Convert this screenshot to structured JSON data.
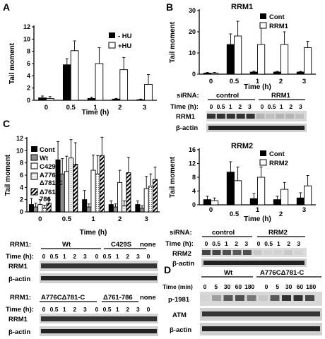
{
  "panels": {
    "A": "A",
    "B": "B",
    "C": "C",
    "D": "D"
  },
  "colors": {
    "bar_black": "#000000",
    "bar_white": "#ffffff",
    "bar_gray": "#8c8c8c"
  },
  "chart_data": [
    {
      "id": "A",
      "type": "bar",
      "title": "",
      "xlabel": "Time (h)",
      "ylabel": "Tail moment",
      "categories": [
        "0",
        "0.5",
        "1",
        "2",
        "3"
      ],
      "ylim": [
        0,
        12
      ],
      "yticks": [
        0,
        2,
        4,
        6,
        8,
        10,
        12
      ],
      "series": [
        {
          "name": "- HU",
          "values": [
            0.4,
            5.8,
            0.3,
            0.2,
            0.1
          ],
          "errors": [
            0.3,
            1.0,
            0.2,
            0.1,
            0.1
          ]
        },
        {
          "name": "+HU",
          "values": [
            0.3,
            8.1,
            6.0,
            5.0,
            2.6
          ],
          "errors": [
            0.3,
            1.6,
            2.6,
            2.0,
            1.6
          ]
        }
      ]
    },
    {
      "id": "B1",
      "type": "bar",
      "title": "RRM1",
      "xlabel": "Time (h)",
      "ylabel": "Tail moment",
      "categories": [
        "0",
        "0.5",
        "1",
        "2",
        "3"
      ],
      "ylim": [
        0,
        30
      ],
      "yticks": [
        0,
        10,
        20,
        30
      ],
      "series": [
        {
          "name": "Cont",
          "values": [
            0.5,
            14,
            1,
            1,
            1
          ],
          "errors": [
            0.3,
            5,
            0.4,
            0.3,
            0.3
          ]
        },
        {
          "name": "RRM1",
          "values": [
            0.5,
            18,
            14,
            14,
            12.5
          ],
          "errors": [
            0.3,
            7,
            8,
            6,
            3
          ]
        }
      ]
    },
    {
      "id": "B2",
      "type": "bar",
      "title": "RRM2",
      "xlabel": "Time (h)",
      "ylabel": "Tail moment",
      "categories": [
        "0",
        "0.5",
        "1",
        "2",
        "3"
      ],
      "ylim": [
        0,
        16
      ],
      "yticks": [
        0,
        4,
        8,
        12,
        16
      ],
      "series": [
        {
          "name": "Cont",
          "values": [
            1.5,
            9.5,
            1.8,
            1.5,
            2.0
          ],
          "errors": [
            1.0,
            3.0,
            1.5,
            1.0,
            1.5
          ]
        },
        {
          "name": "RRM2",
          "values": [
            1.2,
            7.0,
            8.0,
            4.5,
            5.5
          ],
          "errors": [
            0.8,
            4.0,
            3.0,
            2.0,
            3.0
          ]
        }
      ]
    },
    {
      "id": "C",
      "type": "bar",
      "title": "",
      "xlabel": "Time (h)",
      "ylabel": "Tail moment",
      "categories": [
        "0",
        "0.5",
        "1",
        "2",
        "3"
      ],
      "ylim": [
        0,
        12
      ],
      "yticks": [
        0,
        2,
        4,
        6,
        8,
        10,
        12
      ],
      "series": [
        {
          "name": "Cont",
          "values": [
            1.2,
            8.5,
            2.0,
            1.2,
            1.2
          ],
          "errors": [
            1.0,
            3.0,
            1.5,
            0.6,
            0.6
          ]
        },
        {
          "name": "Wt",
          "values": [
            0.8,
            6.2,
            0.8,
            0.8,
            0.6
          ],
          "errors": [
            0.6,
            2.5,
            0.5,
            0.5,
            0.4
          ]
        },
        {
          "name": "C429S",
          "values": [
            1.2,
            6.6,
            6.8,
            4.8,
            3.8
          ],
          "errors": [
            0.8,
            2.5,
            2.5,
            2.0,
            2.0
          ]
        },
        {
          "name": "A776C Δ781-C",
          "values": [
            0.6,
            8.8,
            6.2,
            1.0,
            4.2
          ],
          "errors": [
            0.5,
            3.0,
            3.0,
            0.8,
            2.0
          ]
        },
        {
          "name": "Δ761-786",
          "values": [
            1.4,
            7.8,
            9.2,
            6.4,
            5.3
          ],
          "errors": [
            0.8,
            3.5,
            3.0,
            2.5,
            2.0
          ]
        }
      ]
    }
  ],
  "legends": {
    "A": [
      "- HU",
      "+HU"
    ],
    "B1": [
      "Cont",
      "RRM1"
    ],
    "B2": [
      "Cont",
      "RRM2"
    ],
    "C": [
      "Cont",
      "Wt",
      "C429S",
      "A776C",
      "Δ781-C",
      "Δ761-",
      "786"
    ]
  },
  "blots": {
    "B1": {
      "sirna": "siRNA:",
      "groups": [
        "control",
        "RRM1"
      ],
      "time_label": "Time (h):",
      "times": [
        "0",
        "0.5",
        "1",
        "2",
        "3",
        "0",
        "0.5",
        "1",
        "2",
        "3"
      ],
      "rows": [
        "RRM1",
        "β-actin"
      ]
    },
    "B2": {
      "sirna": "siRNA:",
      "groups": [
        "control",
        "RRM2"
      ],
      "time_label": "Time (h):",
      "times": [
        "0",
        "0.5",
        "1",
        "2",
        "3",
        "0",
        "0.5",
        "1",
        "2",
        "3"
      ],
      "rows": [
        "RRM2",
        "β-actin"
      ]
    },
    "C1": {
      "rrm": "RRM1:",
      "groups": [
        "Wt",
        "C429S",
        "none"
      ],
      "time_label": "Time (h):",
      "times": [
        "0",
        "0.5",
        "1",
        "2",
        "3",
        "0",
        "0.5",
        "1",
        "2",
        "3",
        "0"
      ],
      "rows": [
        "RRM1",
        "β-actin"
      ]
    },
    "C2": {
      "rrm": "RRM1:",
      "groups": [
        "A776CΔ781-C",
        "Δ761-786",
        "none"
      ],
      "time_label": "Time (h):",
      "times": [
        "0",
        "0.5",
        "1",
        "2",
        "3",
        "0",
        "0.5",
        "1",
        "2",
        "3",
        "0"
      ],
      "rows": [
        "RRM1",
        "β-actin"
      ]
    },
    "D": {
      "groups": [
        "Wt",
        "A776CΔ781-C"
      ],
      "time_label": "Time (min)",
      "times": [
        "0",
        "5",
        "30",
        "60",
        "180",
        "0",
        "5",
        "30",
        "60",
        "180"
      ],
      "rows": [
        "p-1981",
        "ATM",
        "β-actin"
      ]
    }
  }
}
